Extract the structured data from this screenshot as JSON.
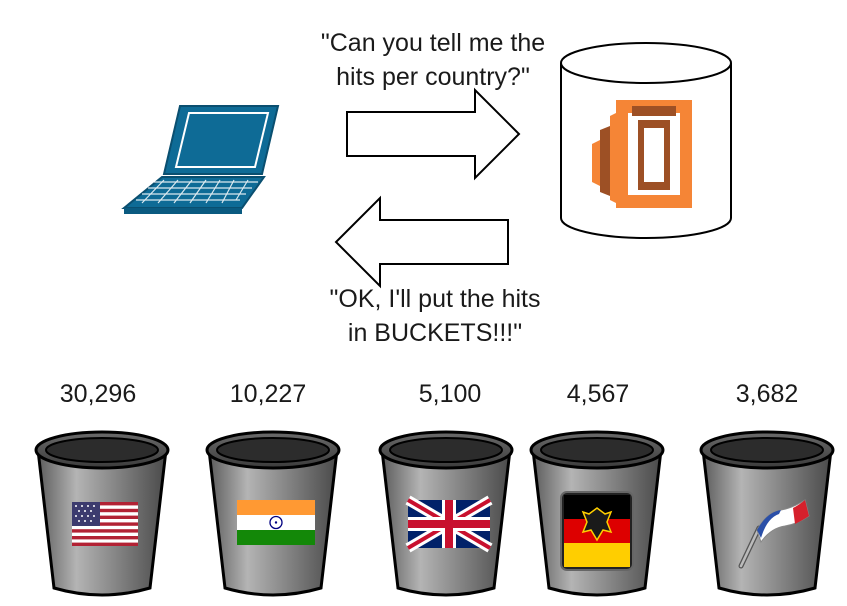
{
  "request_text": [
    "\"Can you tell me the",
    "hits per country?\""
  ],
  "response_text": [
    "\"OK, I'll put the hits",
    "in BUCKETS!!!\""
  ],
  "colors": {
    "laptop": "#0e6b96",
    "service_orange_light": "#f58536",
    "service_orange_dark": "#9d5025",
    "bucket_body": "#9a9a9a",
    "outline": "#000000"
  },
  "icons": {
    "client": "laptop-icon",
    "server": "database-cylinder",
    "service_logo": "elasticsearch-service-logo"
  },
  "buckets": [
    {
      "country": "United States",
      "count": "30,296",
      "flag_icon": "us-flag-icon"
    },
    {
      "country": "India",
      "count": "10,227",
      "flag_icon": "india-flag-icon"
    },
    {
      "country": "United Kingdom",
      "count": "5,100",
      "flag_icon": "uk-flag-icon"
    },
    {
      "country": "Germany",
      "count": "4,567",
      "flag_icon": "germany-flag-icon"
    },
    {
      "country": "France",
      "count": "3,682",
      "flag_icon": "france-flag-icon"
    }
  ]
}
